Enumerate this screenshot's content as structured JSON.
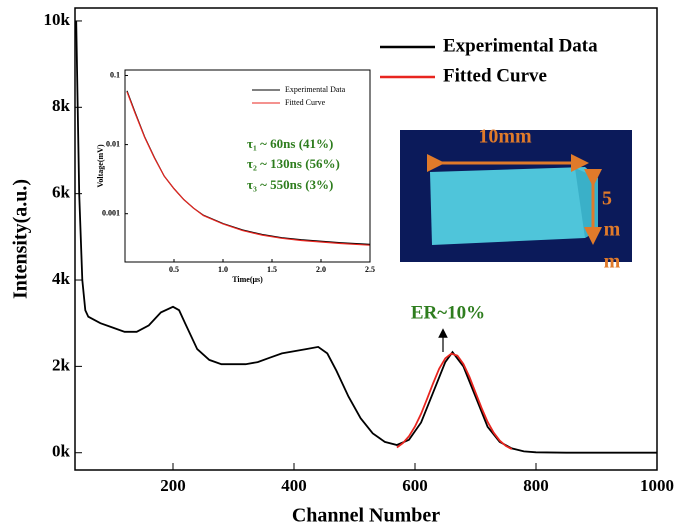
{
  "chart_data": [
    {
      "type": "line",
      "xlabel": "Channel Number",
      "ylabel": "Intensity(a.u.)",
      "xlim": [
        38,
        1000
      ],
      "ylim": [
        -400,
        10300
      ],
      "xticks": [
        200,
        400,
        600,
        800,
        1000
      ],
      "yticks": [
        {
          "value": 0,
          "label": "0k"
        },
        {
          "value": 2000,
          "label": "2k"
        },
        {
          "value": 4000,
          "label": "4k"
        },
        {
          "value": 6000,
          "label": "6k"
        },
        {
          "value": 8000,
          "label": "8k"
        },
        {
          "value": 10000,
          "label": "10k"
        }
      ],
      "grid": false,
      "legend": "upper right",
      "series": [
        {
          "name": "Experimental Data",
          "color": "#000000",
          "x": [
            40,
            45,
            50,
            55,
            60,
            80,
            100,
            120,
            140,
            160,
            180,
            200,
            210,
            220,
            240,
            260,
            280,
            300,
            320,
            340,
            360,
            380,
            400,
            420,
            440,
            455,
            470,
            490,
            510,
            530,
            550,
            570,
            590,
            610,
            630,
            650,
            662,
            680,
            700,
            720,
            740,
            760,
            780,
            800,
            850,
            900,
            1000
          ],
          "values": [
            10000,
            6000,
            4000,
            3300,
            3150,
            3000,
            2900,
            2800,
            2800,
            2950,
            3250,
            3380,
            3300,
            3000,
            2400,
            2150,
            2050,
            2050,
            2050,
            2100,
            2200,
            2300,
            2350,
            2400,
            2450,
            2300,
            1900,
            1300,
            800,
            450,
            250,
            180,
            300,
            700,
            1400,
            2100,
            2330,
            2000,
            1300,
            600,
            250,
            100,
            30,
            10,
            0,
            0,
            0
          ]
        },
        {
          "name": "Fitted Curve",
          "color": "#e8251f",
          "x": [
            570,
            580,
            590,
            600,
            610,
            620,
            630,
            640,
            650,
            660,
            670,
            680,
            690,
            700,
            710,
            720,
            730,
            740,
            750,
            760
          ],
          "values": [
            122,
            224,
            382,
            608,
            902,
            1248,
            1613,
            1945,
            2188,
            2297,
            2250,
            2056,
            1754,
            1395,
            1036,
            717,
            464,
            280,
            158,
            83
          ]
        }
      ],
      "annotations": [
        "ER~10%"
      ]
    },
    {
      "type": "line",
      "xlabel": "Time(μs)",
      "ylabel": "Voltage(mV)",
      "log_y": true,
      "xlim": [
        0,
        2.5
      ],
      "ylim": [
        0.0002,
        0.12
      ],
      "xticks": [
        0.5,
        {
          "value": 1,
          "label": "1.0"
        },
        1.5,
        {
          "value": 2,
          "label": "2.0"
        },
        2.5
      ],
      "yticks": [
        0.001,
        0.01,
        0.1
      ],
      "grid": false,
      "legend": "upper right",
      "series": [
        {
          "name": "Experimental Data",
          "color": "#000000",
          "x": [
            0.02,
            0.1,
            0.2,
            0.3,
            0.4,
            0.5,
            0.6,
            0.7,
            0.8,
            1.0,
            1.2,
            1.4,
            1.6,
            1.8,
            2.0,
            2.2,
            2.5
          ],
          "values": [
            0.06,
            0.03,
            0.013,
            0.0065,
            0.0035,
            0.0023,
            0.0016,
            0.0012,
            0.00095,
            0.00072,
            0.00058,
            0.0005,
            0.00045,
            0.00042,
            0.0004,
            0.00038,
            0.00036
          ]
        },
        {
          "name": "Fitted Curve",
          "color": "#e8251f",
          "x": [
            0.02,
            0.1,
            0.2,
            0.3,
            0.4,
            0.5,
            0.6,
            0.7,
            0.8,
            1.0,
            1.2,
            1.4,
            1.6,
            1.8,
            2.0,
            2.2,
            2.5
          ],
          "values": [
            0.058,
            0.029,
            0.0128,
            0.0064,
            0.0035,
            0.0023,
            0.0016,
            0.0012,
            0.00094,
            0.00071,
            0.00057,
            0.00049,
            0.00044,
            0.00041,
            0.00039,
            0.00037,
            0.00035
          ]
        }
      ],
      "annotations": [
        "τ₁ ~ 60ns (41%)",
        "τ₂ ~ 130ns (56%)",
        "τ₃ ~ 550ns (3%)"
      ]
    }
  ],
  "photo": {
    "labels": [
      "10mm",
      "5",
      "m",
      "m"
    ]
  }
}
